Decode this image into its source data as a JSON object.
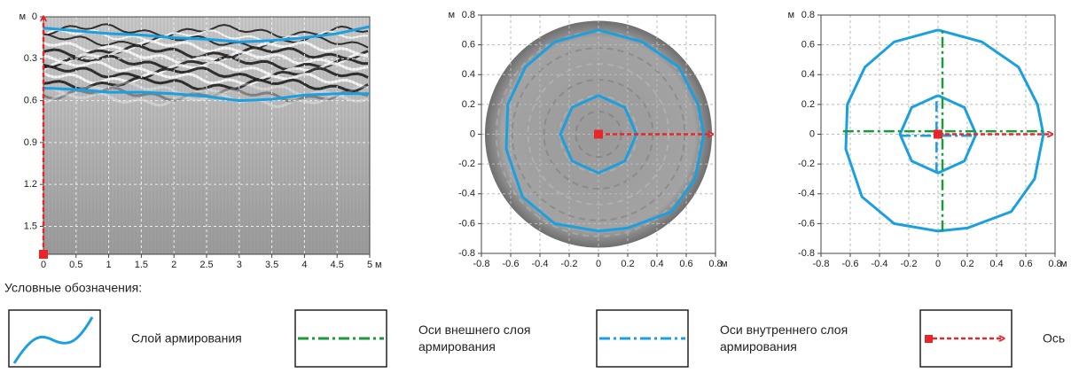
{
  "chart_data": [
    {
      "type": "radargram",
      "xlabel": "м",
      "ylabel": "м",
      "xlim": [
        0,
        5
      ],
      "ylim": [
        1.7,
        0
      ],
      "xticks": [
        0,
        0.5,
        1,
        1.5,
        2,
        2.5,
        3,
        3.5,
        4,
        4.5,
        5
      ],
      "yticks": [
        0,
        0.3,
        0.6,
        0.9,
        1.2,
        1.5
      ],
      "grid": true,
      "series": [
        {
          "color": "#1aa0e0",
          "style": "solid",
          "x": [
            0,
            0.5,
            1,
            1.5,
            2,
            2.5,
            3,
            3.5,
            4,
            4.5,
            5
          ],
          "values": [
            0.08,
            0.1,
            0.12,
            0.13,
            0.15,
            0.16,
            0.18,
            0.17,
            0.15,
            0.12,
            0.07
          ]
        },
        {
          "color": "#1aa0e0",
          "style": "solid",
          "x": [
            0,
            0.5,
            1,
            1.5,
            2,
            2.5,
            3,
            3.5,
            4,
            4.5,
            5
          ],
          "values": [
            0.51,
            0.52,
            0.54,
            0.54,
            0.55,
            0.57,
            0.6,
            0.59,
            0.56,
            0.55,
            0.55
          ]
        },
        {
          "color": "#e8262a",
          "style": "arrow",
          "x": [
            0,
            0
          ],
          "values": [
            1.7,
            0
          ]
        }
      ]
    },
    {
      "type": "section",
      "xlabel": "м",
      "ylabel": "м",
      "xlim": [
        -0.8,
        0.8
      ],
      "ylim": [
        -0.8,
        0.8
      ],
      "xticks": [
        -0.8,
        -0.6,
        -0.4,
        -0.2,
        0,
        0.2,
        0.4,
        0.6,
        0.8
      ],
      "yticks": [
        -0.8,
        -0.6,
        -0.4,
        -0.2,
        0,
        0.2,
        0.4,
        0.6,
        0.8
      ],
      "grid": true,
      "series": [
        {
          "color": "#1aa0e0",
          "style": "solid",
          "x": [
            0,
            0.3,
            0.55,
            0.68,
            0.72,
            0.66,
            0.5,
            0.2,
            0,
            -0.3,
            -0.52,
            -0.63,
            -0.62,
            -0.5,
            -0.3,
            0
          ],
          "values": [
            0.7,
            0.62,
            0.45,
            0.2,
            0,
            -0.3,
            -0.52,
            -0.63,
            -0.65,
            -0.6,
            -0.42,
            -0.1,
            0.2,
            0.45,
            0.62,
            0.7
          ]
        },
        {
          "color": "#1aa0e0",
          "style": "solid",
          "x": [
            0,
            0.18,
            0.26,
            0.18,
            0,
            -0.18,
            -0.26,
            -0.18,
            0
          ],
          "values": [
            0.26,
            0.18,
            0,
            -0.18,
            -0.26,
            -0.18,
            0,
            0.18,
            0.26
          ]
        },
        {
          "color": "#e8262a",
          "style": "arrow",
          "x": [
            0,
            0.78
          ],
          "values": [
            0,
            0
          ]
        }
      ]
    },
    {
      "type": "scheme",
      "xlabel": "м",
      "ylabel": "м",
      "xlim": [
        -0.8,
        0.8
      ],
      "ylim": [
        -0.8,
        0.8
      ],
      "xticks": [
        -0.8,
        -0.6,
        -0.4,
        -0.2,
        0,
        0.2,
        0.4,
        0.6,
        0.8
      ],
      "yticks": [
        -0.8,
        -0.6,
        -0.4,
        -0.2,
        0,
        0.2,
        0.4,
        0.6,
        0.8
      ],
      "grid": true,
      "series": [
        {
          "color": "#1aa0e0",
          "style": "solid",
          "x": [
            0,
            0.3,
            0.55,
            0.68,
            0.72,
            0.66,
            0.5,
            0.2,
            0,
            -0.3,
            -0.52,
            -0.63,
            -0.62,
            -0.5,
            -0.3,
            0
          ],
          "values": [
            0.7,
            0.62,
            0.45,
            0.2,
            0,
            -0.3,
            -0.52,
            -0.63,
            -0.65,
            -0.6,
            -0.42,
            -0.1,
            0.2,
            0.45,
            0.62,
            0.7
          ]
        },
        {
          "color": "#1aa0e0",
          "style": "solid",
          "x": [
            0,
            0.18,
            0.26,
            0.18,
            0,
            -0.18,
            -0.26,
            -0.18,
            0
          ],
          "values": [
            0.26,
            0.18,
            0,
            -0.18,
            -0.26,
            -0.18,
            0,
            0.18,
            0.26
          ]
        },
        {
          "color": "#1a9a3a",
          "style": "dashdot",
          "x": [
            -0.65,
            0.72
          ],
          "values": [
            0.02,
            0.02
          ]
        },
        {
          "color": "#1a9a3a",
          "style": "dashdot",
          "x": [
            0.03,
            0.03
          ],
          "values": [
            -0.65,
            0.7
          ]
        },
        {
          "color": "#1aa0e0",
          "style": "dashdot",
          "x": [
            -0.26,
            0.26
          ],
          "values": [
            -0.01,
            -0.01
          ]
        },
        {
          "color": "#1aa0e0",
          "style": "dashdot",
          "x": [
            -0.01,
            -0.01
          ],
          "values": [
            -0.26,
            0.26
          ]
        },
        {
          "color": "#e8262a",
          "style": "arrow",
          "x": [
            0,
            0.78
          ],
          "values": [
            0,
            0
          ]
        }
      ]
    }
  ],
  "legend": {
    "title": "Условные обозначения:",
    "items": [
      [
        "Слой армирования"
      ],
      [
        "Оси внешнего слоя",
        "армирования"
      ],
      [
        "Оси внутреннего слоя",
        "армирования"
      ],
      [
        "Ось"
      ]
    ]
  }
}
